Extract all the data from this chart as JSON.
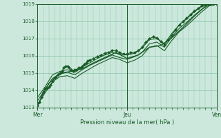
{
  "title": "",
  "xlabel": "Pression niveau de la mer( hPa )",
  "ylabel": "",
  "background_color": "#cce8dc",
  "plot_bg_color": "#cce8dc",
  "grid_color": "#88c4aa",
  "line_color": "#1a5c28",
  "marker_color": "#1a5c28",
  "ylim": [
    1013,
    1019
  ],
  "yticks": [
    1013,
    1014,
    1015,
    1016,
    1017,
    1018,
    1019
  ],
  "day_labels": [
    "Mer",
    "Jeu",
    "Ven"
  ],
  "day_positions": [
    0,
    48,
    96
  ],
  "lines": [
    {
      "x": [
        0,
        1,
        2,
        3,
        4,
        5,
        6,
        7,
        8,
        9,
        10,
        11,
        12,
        13,
        14,
        15,
        16,
        17,
        18,
        19,
        20,
        21,
        22,
        23,
        24,
        25,
        26,
        27,
        28,
        30,
        32,
        34,
        36,
        38,
        40,
        42,
        44,
        46,
        48,
        50,
        52,
        54,
        56,
        58,
        60,
        62,
        64,
        66,
        68,
        70,
        72,
        74,
        76,
        78,
        80,
        82,
        84,
        86,
        88,
        90,
        92,
        94,
        96
      ],
      "y": [
        1013.1,
        1013.3,
        1013.6,
        1013.9,
        1014.1,
        1014.1,
        1014.2,
        1014.3,
        1014.5,
        1014.7,
        1014.8,
        1014.9,
        1015.0,
        1015.1,
        1015.3,
        1015.4,
        1015.4,
        1015.3,
        1015.2,
        1015.1,
        1015.2,
        1015.2,
        1015.3,
        1015.3,
        1015.4,
        1015.5,
        1015.6,
        1015.7,
        1015.75,
        1015.85,
        1015.95,
        1016.05,
        1016.15,
        1016.2,
        1016.3,
        1016.3,
        1016.2,
        1016.1,
        1016.1,
        1016.2,
        1016.2,
        1016.3,
        1016.5,
        1016.8,
        1017.0,
        1017.1,
        1017.05,
        1016.85,
        1016.65,
        1016.9,
        1017.2,
        1017.5,
        1017.8,
        1018.0,
        1018.2,
        1018.4,
        1018.6,
        1018.75,
        1018.9,
        1019.0,
        1019.0,
        1019.0,
        1019.0
      ],
      "marker": "D",
      "markersize": 2.0,
      "linewidth": 0.8,
      "zorder": 5
    },
    {
      "x": [
        0,
        4,
        8,
        12,
        16,
        20,
        24,
        28,
        32,
        36,
        40,
        44,
        48,
        52,
        56,
        60,
        64,
        68,
        72,
        76,
        80,
        84,
        88,
        92,
        96
      ],
      "y": [
        1013.6,
        1014.2,
        1014.9,
        1015.1,
        1015.2,
        1015.05,
        1015.35,
        1015.6,
        1015.85,
        1016.05,
        1016.2,
        1016.1,
        1016.05,
        1016.15,
        1016.45,
        1016.95,
        1017.0,
        1016.7,
        1017.3,
        1017.8,
        1018.15,
        1018.55,
        1018.85,
        1019.0,
        1019.0
      ],
      "marker": null,
      "markersize": 0,
      "linewidth": 0.8,
      "zorder": 3
    },
    {
      "x": [
        0,
        4,
        8,
        12,
        16,
        20,
        24,
        28,
        32,
        36,
        40,
        44,
        48,
        52,
        56,
        60,
        64,
        68,
        72,
        76,
        80,
        84,
        88,
        92,
        96
      ],
      "y": [
        1013.4,
        1014.05,
        1014.7,
        1014.95,
        1015.05,
        1014.9,
        1015.2,
        1015.45,
        1015.65,
        1015.85,
        1016.05,
        1015.9,
        1015.8,
        1015.95,
        1016.2,
        1016.7,
        1016.8,
        1016.5,
        1017.1,
        1017.6,
        1017.95,
        1018.35,
        1018.7,
        1018.95,
        1019.0
      ],
      "marker": null,
      "markersize": 0,
      "linewidth": 0.8,
      "zorder": 3
    },
    {
      "x": [
        0,
        4,
        8,
        12,
        16,
        20,
        24,
        28,
        32,
        36,
        40,
        44,
        48,
        52,
        56,
        60,
        64,
        68,
        72,
        76,
        80,
        84,
        88,
        92,
        96
      ],
      "y": [
        1013.2,
        1013.85,
        1014.5,
        1014.8,
        1014.85,
        1014.7,
        1015.0,
        1015.25,
        1015.5,
        1015.7,
        1015.9,
        1015.8,
        1015.6,
        1015.75,
        1016.0,
        1016.5,
        1016.6,
        1016.3,
        1016.9,
        1017.4,
        1017.75,
        1018.15,
        1018.55,
        1018.9,
        1019.0
      ],
      "marker": null,
      "markersize": 0,
      "linewidth": 0.8,
      "zorder": 3
    },
    {
      "x": [
        0,
        6,
        12,
        18,
        24,
        30,
        36,
        42,
        48,
        54,
        60,
        66,
        72,
        78,
        84,
        90,
        96
      ],
      "y": [
        1013.15,
        1014.4,
        1015.0,
        1015.1,
        1015.25,
        1015.6,
        1015.9,
        1016.2,
        1015.85,
        1016.05,
        1016.5,
        1016.6,
        1017.05,
        1017.65,
        1018.3,
        1018.88,
        1019.0
      ],
      "marker": null,
      "markersize": 0,
      "linewidth": 1.0,
      "zorder": 4
    }
  ]
}
